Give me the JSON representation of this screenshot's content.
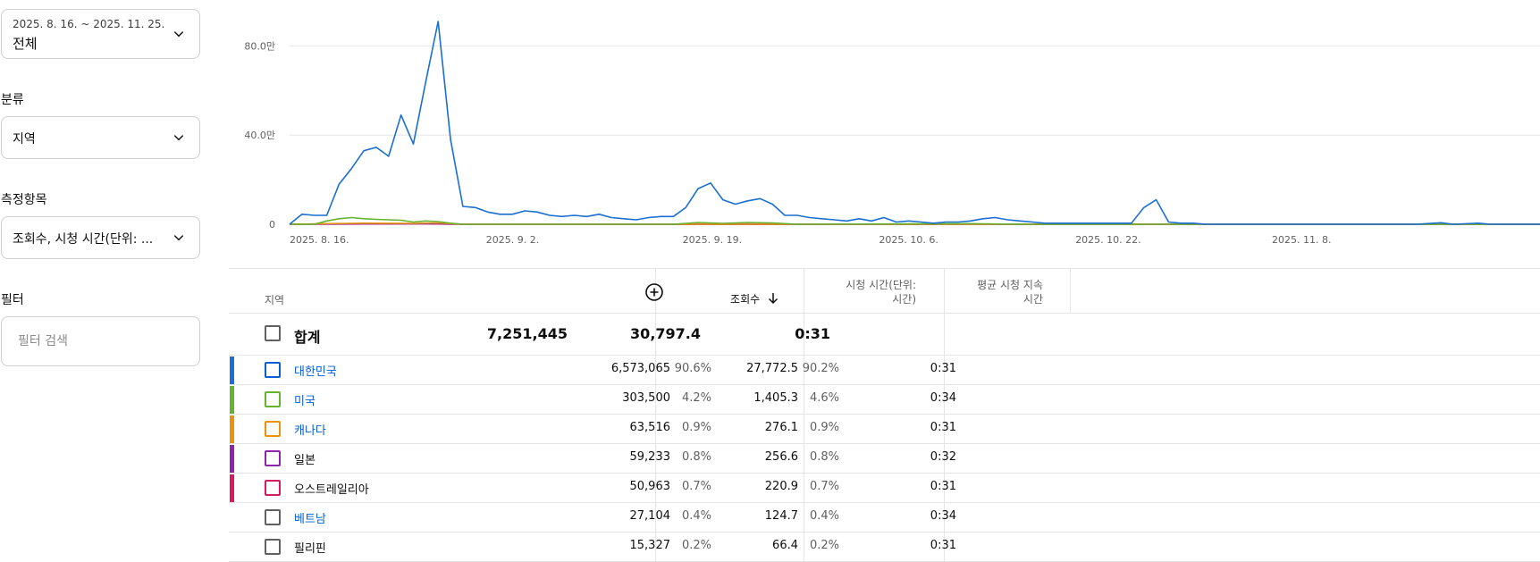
{
  "controls": {
    "date_range": {
      "range": "2025. 8. 16. ~ 2025. 11. 25.",
      "value": "전체"
    },
    "category": {
      "label": "분류",
      "value": "지역"
    },
    "metrics": {
      "label": "측정항목",
      "value": "조회수, 시청 시간(단위: ..."
    },
    "filter": {
      "label": "필터",
      "placeholder": "필터 검색"
    }
  },
  "chart_data": {
    "type": "line",
    "x_tick_labels": [
      "2025. 8. 16.",
      "2025. 9. 2.",
      "2025. 9. 19.",
      "2025. 10. 6.",
      "2025. 10. 22.",
      "2025. 11. 8."
    ],
    "y_tick_labels": [
      "0",
      "40.0만",
      "80.0만"
    ],
    "y_ticks": [
      0,
      400000,
      800000
    ],
    "ylim": [
      0,
      950000
    ],
    "x_start": "2025-08-16",
    "x_end": "2025-11-25",
    "grid": true,
    "legend": "none",
    "series": [
      {
        "color": "#1a6fd1",
        "points": [
          [
            "2025-08-16",
            0
          ],
          [
            "2025-08-17",
            45000
          ],
          [
            "2025-08-18",
            40000
          ],
          [
            "2025-08-19",
            40000
          ],
          [
            "2025-08-20",
            180000
          ],
          [
            "2025-08-21",
            250000
          ],
          [
            "2025-08-22",
            330000
          ],
          [
            "2025-08-23",
            345000
          ],
          [
            "2025-08-24",
            305000
          ],
          [
            "2025-08-25",
            490000
          ],
          [
            "2025-08-26",
            360000
          ],
          [
            "2025-08-27",
            640000
          ],
          [
            "2025-08-28",
            910000
          ],
          [
            "2025-08-29",
            380000
          ],
          [
            "2025-08-30",
            80000
          ],
          [
            "2025-08-31",
            75000
          ],
          [
            "2025-09-01",
            55000
          ],
          [
            "2025-09-02",
            45000
          ],
          [
            "2025-09-03",
            45000
          ],
          [
            "2025-09-04",
            60000
          ],
          [
            "2025-09-05",
            55000
          ],
          [
            "2025-09-06",
            40000
          ],
          [
            "2025-09-07",
            35000
          ],
          [
            "2025-09-08",
            40000
          ],
          [
            "2025-09-09",
            35000
          ],
          [
            "2025-09-10",
            45000
          ],
          [
            "2025-09-11",
            30000
          ],
          [
            "2025-09-12",
            25000
          ],
          [
            "2025-09-13",
            20000
          ],
          [
            "2025-09-14",
            30000
          ],
          [
            "2025-09-15",
            35000
          ],
          [
            "2025-09-16",
            35000
          ],
          [
            "2025-09-17",
            75000
          ],
          [
            "2025-09-18",
            160000
          ],
          [
            "2025-09-19",
            185000
          ],
          [
            "2025-09-20",
            110000
          ],
          [
            "2025-09-21",
            90000
          ],
          [
            "2025-09-22",
            105000
          ],
          [
            "2025-09-23",
            115000
          ],
          [
            "2025-09-24",
            90000
          ],
          [
            "2025-09-25",
            40000
          ],
          [
            "2025-09-26",
            40000
          ],
          [
            "2025-09-27",
            30000
          ],
          [
            "2025-09-28",
            25000
          ],
          [
            "2025-09-29",
            20000
          ],
          [
            "2025-09-30",
            15000
          ],
          [
            "2025-10-01",
            25000
          ],
          [
            "2025-10-02",
            15000
          ],
          [
            "2025-10-03",
            30000
          ],
          [
            "2025-10-04",
            10000
          ],
          [
            "2025-10-05",
            15000
          ],
          [
            "2025-10-06",
            10000
          ],
          [
            "2025-10-07",
            5000
          ],
          [
            "2025-10-08",
            10000
          ],
          [
            "2025-10-09",
            10000
          ],
          [
            "2025-10-10",
            15000
          ],
          [
            "2025-10-11",
            25000
          ],
          [
            "2025-10-12",
            30000
          ],
          [
            "2025-10-13",
            20000
          ],
          [
            "2025-10-14",
            15000
          ],
          [
            "2025-10-15",
            10000
          ],
          [
            "2025-10-16",
            5000
          ],
          [
            "2025-10-17",
            5000
          ],
          [
            "2025-10-18",
            5000
          ],
          [
            "2025-10-19",
            5000
          ],
          [
            "2025-10-20",
            5000
          ],
          [
            "2025-10-21",
            5000
          ],
          [
            "2025-10-22",
            5000
          ],
          [
            "2025-10-23",
            5000
          ],
          [
            "2025-10-24",
            75000
          ],
          [
            "2025-10-25",
            110000
          ],
          [
            "2025-10-26",
            10000
          ],
          [
            "2025-10-27",
            5000
          ],
          [
            "2025-10-28",
            5000
          ],
          [
            "2025-10-29",
            0
          ],
          [
            "2025-10-30",
            0
          ],
          [
            "2025-11-01",
            0
          ],
          [
            "2025-11-05",
            0
          ],
          [
            "2025-11-10",
            0
          ],
          [
            "2025-11-15",
            0
          ],
          [
            "2025-11-17",
            7000
          ],
          [
            "2025-11-18",
            0
          ],
          [
            "2025-11-20",
            5000
          ],
          [
            "2025-11-21",
            0
          ],
          [
            "2025-11-25",
            0
          ]
        ]
      },
      {
        "color": "#65b32e",
        "points": [
          [
            "2025-08-16",
            0
          ],
          [
            "2025-08-18",
            0
          ],
          [
            "2025-08-19",
            15000
          ],
          [
            "2025-08-20",
            25000
          ],
          [
            "2025-08-21",
            30000
          ],
          [
            "2025-08-22",
            25000
          ],
          [
            "2025-08-23",
            22000
          ],
          [
            "2025-08-24",
            20000
          ],
          [
            "2025-08-25",
            18000
          ],
          [
            "2025-08-26",
            10000
          ],
          [
            "2025-08-27",
            15000
          ],
          [
            "2025-08-28",
            12000
          ],
          [
            "2025-08-29",
            5000
          ],
          [
            "2025-08-30",
            0
          ],
          [
            "2025-09-16",
            0
          ],
          [
            "2025-09-18",
            8000
          ],
          [
            "2025-09-20",
            4000
          ],
          [
            "2025-09-22",
            8000
          ],
          [
            "2025-09-24",
            6000
          ],
          [
            "2025-09-26",
            0
          ],
          [
            "2025-10-10",
            3000
          ],
          [
            "2025-10-14",
            0
          ],
          [
            "2025-11-25",
            0
          ]
        ]
      },
      {
        "color": "#e8930c",
        "points": [
          [
            "2025-08-16",
            0
          ],
          [
            "2025-08-19",
            3000
          ],
          [
            "2025-08-22",
            5000
          ],
          [
            "2025-08-26",
            4000
          ],
          [
            "2025-08-28",
            6000
          ],
          [
            "2025-08-30",
            0
          ],
          [
            "2025-11-25",
            0
          ]
        ]
      },
      {
        "color": "#8e24aa",
        "points": [
          [
            "2025-08-16",
            0
          ],
          [
            "2025-08-22",
            2000
          ],
          [
            "2025-08-28",
            3000
          ],
          [
            "2025-08-30",
            0
          ],
          [
            "2025-11-25",
            0
          ]
        ]
      },
      {
        "color": "#d81b60",
        "points": [
          [
            "2025-08-16",
            0
          ],
          [
            "2025-08-27",
            2000
          ],
          [
            "2025-08-29",
            0
          ],
          [
            "2025-11-25",
            0
          ]
        ]
      }
    ]
  },
  "table": {
    "header": {
      "region": "지역",
      "views": "조회수",
      "watch_time": "시청 시간(단위: 시간)",
      "avg_duration": "평균 시청 지속 시간",
      "add_column_icon": "plus-circle-icon",
      "sort_icon": "arrow-down-icon"
    },
    "total": {
      "label": "합계",
      "views": "7,251,445",
      "watch_time": "30,797.4",
      "avg": "0:31"
    },
    "rows": [
      {
        "name": "대한민국",
        "is_link": true,
        "color": "#1a6fd1",
        "checkbox_color": "#065fd4",
        "views": "6,573,065",
        "views_pct": "90.6%",
        "watch": "27,772.5",
        "watch_pct": "90.2%",
        "avg": "0:31"
      },
      {
        "name": "미국",
        "is_link": true,
        "color": "#65b32e",
        "checkbox_color": "#65b32e",
        "views": "303,500",
        "views_pct": "4.2%",
        "watch": "1,405.3",
        "watch_pct": "4.6%",
        "avg": "0:34"
      },
      {
        "name": "캐나다",
        "is_link": true,
        "color": "#e8930c",
        "checkbox_color": "#e8930c",
        "views": "63,516",
        "views_pct": "0.9%",
        "watch": "276.1",
        "watch_pct": "0.9%",
        "avg": "0:31"
      },
      {
        "name": "일본",
        "is_link": false,
        "color": "#8e24aa",
        "checkbox_color": "#8e24aa",
        "views": "59,233",
        "views_pct": "0.8%",
        "watch": "256.6",
        "watch_pct": "0.8%",
        "avg": "0:32"
      },
      {
        "name": "오스트레일리아",
        "is_link": false,
        "color": "#d81b60",
        "checkbox_color": "#d81b60",
        "views": "50,963",
        "views_pct": "0.7%",
        "watch": "220.9",
        "watch_pct": "0.7%",
        "avg": "0:31"
      },
      {
        "name": "베트남",
        "is_link": true,
        "color": "",
        "checkbox_color": "#606060",
        "views": "27,104",
        "views_pct": "0.4%",
        "watch": "124.7",
        "watch_pct": "0.4%",
        "avg": "0:34"
      },
      {
        "name": "필리핀",
        "is_link": false,
        "color": "",
        "checkbox_color": "#606060",
        "views": "15,327",
        "views_pct": "0.2%",
        "watch": "66.4",
        "watch_pct": "0.2%",
        "avg": "0:31"
      }
    ]
  }
}
